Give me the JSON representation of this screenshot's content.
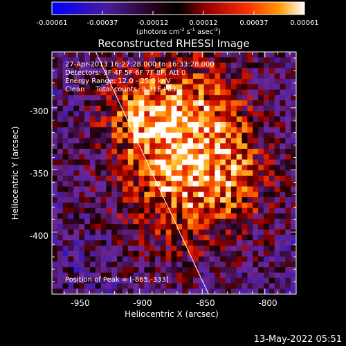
{
  "colorbar": {
    "ticks": [
      "-0.00061",
      "-0.00037",
      "-0.00012",
      "0.00012",
      "0.00037",
      "0.00061"
    ],
    "units": "(photons cm",
    "units_exp1": "-2",
    "units_mid": " s",
    "units_exp2": "-1",
    "units_mid2": " asec",
    "units_exp3": "-2",
    "units_end": ")"
  },
  "colors": {
    "cmap": [
      "#0000ff",
      "#5a1fb8",
      "#7a2a9a",
      "#300015",
      "#b0100f",
      "#ff4a00",
      "#ffaa20",
      "#ffffff"
    ],
    "axes": "#ffffff",
    "limb": "#ffffff"
  },
  "chart_data": {
    "type": "heatmap",
    "title": "Reconstructed RHESSI Image",
    "xlabel": "Heliocentric X (arcsec)",
    "ylabel": "Heliocentric Y (arcsec)",
    "xlim": [
      -970,
      -775
    ],
    "ylim": [
      -450,
      -255
    ],
    "x_ticks": [
      "-950",
      "-900",
      "-850",
      "-800"
    ],
    "x_tick_values": [
      -950,
      -900,
      -850,
      -800
    ],
    "y_ticks": [
      "-300",
      "-350",
      "-400"
    ],
    "y_tick_values": [
      -300,
      -350,
      -400
    ],
    "value_range": [
      -0.00061,
      0.00061
    ],
    "peak": {
      "x": -865,
      "y": -333
    },
    "solar_limb": [
      [
        -935,
        -255
      ],
      [
        -845,
        -450
      ]
    ],
    "annotations": [
      "27-Apr-2013 16:27:28.000 to 16:33:28.000",
      "Detectors: 3F 4F 5F 6F 7F 8F, Att 0",
      "Energy Range: 12.0 - 25.0 keV",
      "Clean     Total counts: 9.31E+03"
    ],
    "peak_label": "Position of Peak = [-865,-333]"
  },
  "footer": {
    "timestamp": "13-May-2022 05:51"
  }
}
